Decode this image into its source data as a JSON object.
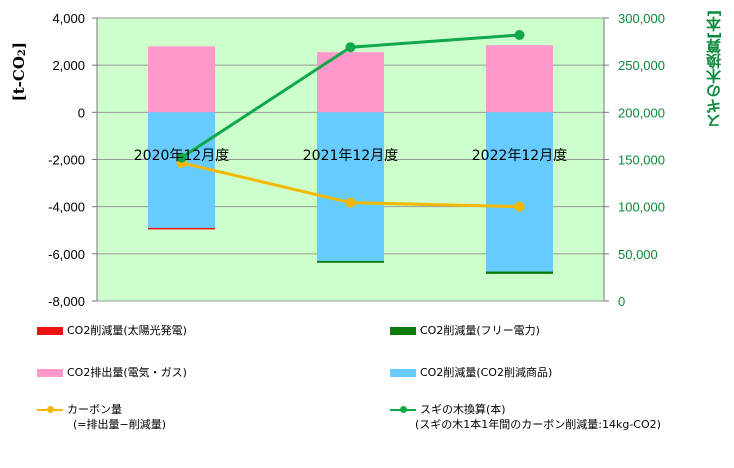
{
  "chart_data": {
    "type": "bar",
    "categories": [
      "2020年12月度",
      "2021年12月度",
      "2022年12月度"
    ],
    "ylim": [
      -8000,
      4000
    ],
    "y2lim": [
      0,
      300000
    ],
    "yticks": [
      "4,000",
      "2,000",
      "0",
      "-2,000",
      "-4,000",
      "-6,000",
      "-8,000"
    ],
    "y2ticks": [
      "300,000",
      "250,000",
      "200,000",
      "150,000",
      "100,000",
      "50,000",
      "0"
    ],
    "ylabel": "[t-CO2]",
    "ylabel_main": "[t-CO",
    "ylabel_sub": "2",
    "ylabel_end": "]",
    "y2label": "スギの木換算[本]",
    "series": [
      {
        "name": "CO2削減量(太陽光発電)",
        "values": [
          -40,
          0,
          0
        ],
        "color": "#ee1111"
      },
      {
        "name": "CO2削減量(フリー電力)",
        "values": [
          0,
          -80,
          -100
        ],
        "color": "#0a7a0a"
      },
      {
        "name": "CO2排出量(電気・ガス)",
        "values": [
          2800,
          2550,
          2850
        ],
        "color": "#ff99cc"
      },
      {
        "name": "CO2削減量(CO2削減商品)",
        "values": [
          -4900,
          -6300,
          -6750
        ],
        "color": "#66ccff"
      },
      {
        "name": "カーボン量",
        "values": [
          -2140,
          -3830,
          -4000
        ],
        "color": "#f5b800"
      },
      {
        "name": "スギの木換算(本)",
        "values": [
          152000,
          269000,
          282000
        ],
        "color": "#10a84a"
      }
    ]
  },
  "legend": {
    "solar": "CO2削減量(太陽光発電)",
    "free": "CO2削減量(フリー電力)",
    "emission": "CO2排出量(電気・ガス)",
    "product": "CO2削減量(CO2削減商品)",
    "carbon_line1": "カーボン量",
    "carbon_line2": "(=排出量−削減量)",
    "cedar_line1": "スギの木換算(本)",
    "cedar_line2": "(スギの木1本1年間のカーボン削減量:14kg-CO2)"
  }
}
